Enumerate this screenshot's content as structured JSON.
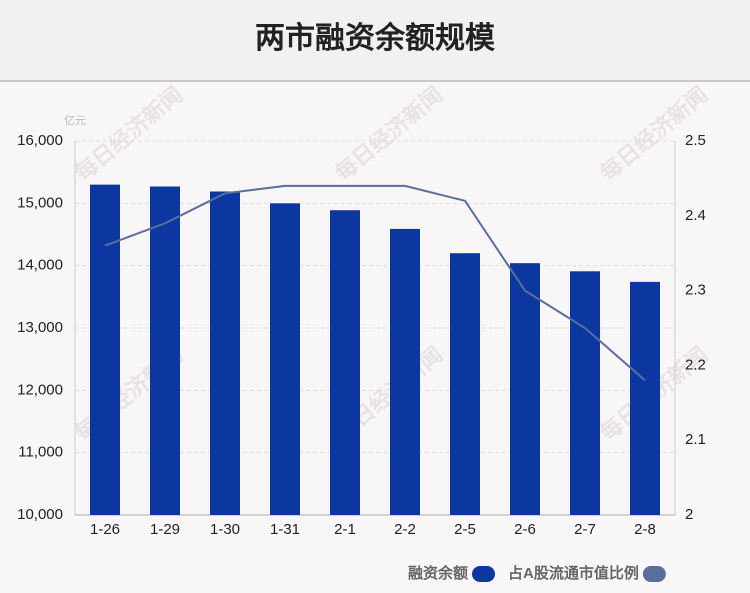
{
  "chart_data": {
    "type": "bar-line",
    "title": "两市融资余额规模",
    "y_unit": "亿元",
    "watermark": "每日经济新闻",
    "categories": [
      "1-26",
      "1-29",
      "1-30",
      "1-31",
      "2-1",
      "2-2",
      "2-5",
      "2-6",
      "2-7",
      "2-8"
    ],
    "series": [
      {
        "name": "融资余额",
        "type": "bar",
        "color": "#0d37a0",
        "values": [
          15300,
          15270,
          15190,
          15000,
          14890,
          14590,
          14200,
          14040,
          13910,
          13740
        ]
      },
      {
        "name": "占A股流通市值比例",
        "type": "line",
        "axis": "y2",
        "color": "#5a6e9c",
        "values": [
          2.36,
          2.39,
          2.43,
          2.44,
          2.44,
          2.44,
          2.42,
          2.3,
          2.25,
          2.18
        ]
      }
    ],
    "ylim": [
      10000,
      16000
    ],
    "yticks": [
      {
        "value": 10000,
        "label": "10,000"
      },
      {
        "value": 11000,
        "label": "11,000"
      },
      {
        "value": 12000,
        "label": "12,000"
      },
      {
        "value": 13000,
        "label": "13,000"
      },
      {
        "value": 14000,
        "label": "14,000"
      },
      {
        "value": 15000,
        "label": "15,000"
      },
      {
        "value": 16000,
        "label": "16,000"
      }
    ],
    "y2lim": [
      2,
      2.5
    ],
    "y2ticks": [
      2,
      2.1,
      2.2,
      2.3,
      2.4,
      2.5
    ],
    "grid": true
  }
}
